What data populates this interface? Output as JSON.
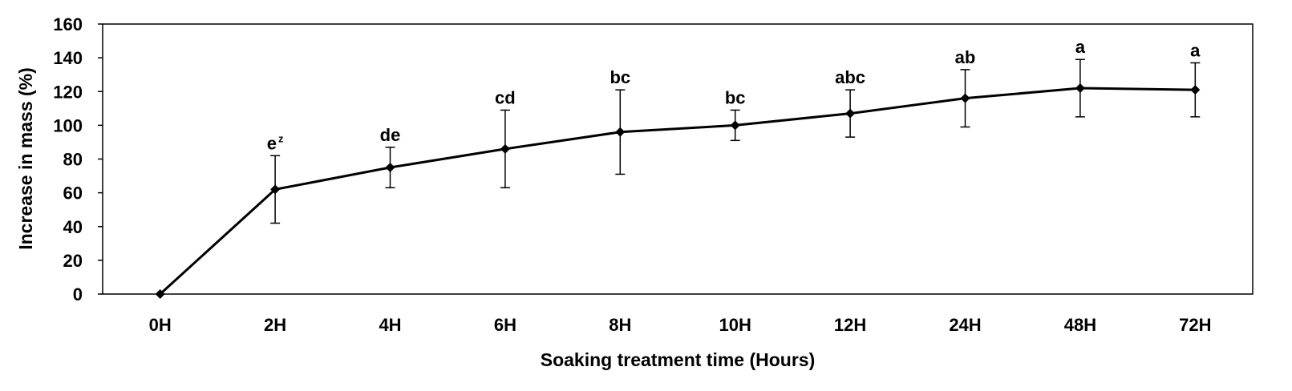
{
  "chart_data": {
    "type": "line",
    "title": "",
    "xlabel": "Soaking treatment time (Hours)",
    "ylabel": "Increase in mass (%)",
    "ylim": [
      0,
      160
    ],
    "yticks": [
      "0",
      "20",
      "40",
      "60",
      "80",
      "100",
      "120",
      "140",
      "160"
    ],
    "grid": false,
    "legend": "none",
    "categories": [
      "0H",
      "2H",
      "4H",
      "6H",
      "8H",
      "10H",
      "12H",
      "24H",
      "48H",
      "72H"
    ],
    "series": [
      {
        "values": [
          0,
          62,
          75,
          86,
          96,
          100,
          107,
          116,
          122,
          121
        ],
        "error": [
          0,
          20,
          12,
          23,
          25,
          9,
          14,
          17,
          17,
          16
        ],
        "color": "#000000",
        "marker": "diamond"
      }
    ],
    "annotations": [
      {
        "category": "0H",
        "label": "",
        "sup": ""
      },
      {
        "category": "2H",
        "label": "e",
        "sup": "z"
      },
      {
        "category": "4H",
        "label": "de",
        "sup": ""
      },
      {
        "category": "6H",
        "label": "cd",
        "sup": ""
      },
      {
        "category": "8H",
        "label": "bc",
        "sup": ""
      },
      {
        "category": "10H",
        "label": "bc",
        "sup": ""
      },
      {
        "category": "12H",
        "label": "abc",
        "sup": ""
      },
      {
        "category": "24H",
        "label": "ab",
        "sup": ""
      },
      {
        "category": "48H",
        "label": "a",
        "sup": ""
      },
      {
        "category": "72H",
        "label": "a",
        "sup": ""
      }
    ]
  }
}
